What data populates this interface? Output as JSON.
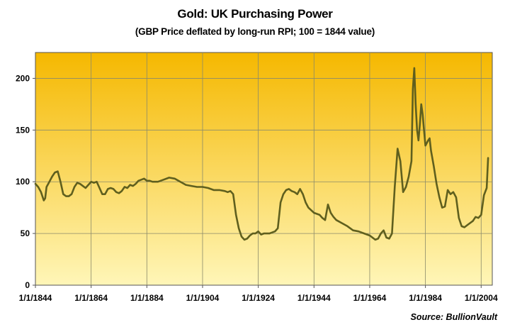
{
  "chart_data": {
    "type": "line",
    "title": "Gold: UK Purchasing Power",
    "subtitle": "(GBP Price deflated by long-run RPI; 100 = 1844 value)",
    "source": "Source: BullionVault",
    "xlabel": "",
    "ylabel": "",
    "xlim": [
      1844,
      2008
    ],
    "ylim": [
      0,
      225
    ],
    "y_ticks": [
      0,
      50,
      100,
      150,
      200
    ],
    "x_ticks": [
      1844,
      1864,
      1884,
      1904,
      1924,
      1944,
      1964,
      1984,
      2004
    ],
    "x_tick_labels": [
      "1/1/1844",
      "1/1/1864",
      "1/1/1884",
      "1/1/1904",
      "1/1/1924",
      "1/1/1944",
      "1/1/1964",
      "1/1/1984",
      "1/1/2004"
    ],
    "grid": true,
    "colors": {
      "line": "#5f5f1e",
      "plot_top": "#f5b800",
      "plot_bottom": "#fff6b8",
      "grid": "#8a8a6a",
      "axis": "#555555"
    },
    "series": [
      {
        "x": [
          1844,
          1845,
          1846,
          1847,
          1847.5,
          1848,
          1849,
          1850,
          1851,
          1852,
          1853,
          1854,
          1855,
          1856,
          1857,
          1858,
          1859,
          1860,
          1861,
          1862,
          1863,
          1864,
          1865,
          1866,
          1867,
          1868,
          1869,
          1870,
          1871,
          1872,
          1873,
          1874,
          1875,
          1876,
          1877,
          1878,
          1879,
          1880,
          1881,
          1882,
          1883,
          1884,
          1885,
          1886,
          1887,
          1888,
          1890,
          1892,
          1894,
          1896,
          1898,
          1900,
          1902,
          1904,
          1906,
          1908,
          1910,
          1912,
          1913,
          1914,
          1915,
          1916,
          1917,
          1918,
          1919,
          1920,
          1921,
          1922,
          1923,
          1924,
          1925,
          1926,
          1928,
          1930,
          1931,
          1932,
          1933,
          1934,
          1935,
          1936,
          1937,
          1938,
          1939,
          1940,
          1941,
          1942,
          1944,
          1946,
          1947,
          1948,
          1949,
          1950,
          1951,
          1952,
          1954,
          1956,
          1958,
          1960,
          1962,
          1964,
          1965,
          1966,
          1967,
          1968,
          1969,
          1970,
          1971,
          1972,
          1973,
          1974,
          1975,
          1976,
          1977,
          1978,
          1979,
          1979.5,
          1980,
          1980.5,
          1981,
          1981.5,
          1982,
          1982.5,
          1983,
          1983.5,
          1984,
          1985,
          1985.5,
          1986,
          1987,
          1988,
          1989,
          1990,
          1991,
          1992,
          1993,
          1994,
          1995,
          1996,
          1997,
          1998,
          1999,
          2000,
          2001,
          2002,
          2003,
          2004,
          2005,
          2006,
          2006.5
        ],
        "y": [
          98,
          95,
          90,
          82,
          84,
          95,
          100,
          105,
          109,
          110,
          100,
          88,
          86,
          86,
          88,
          95,
          99,
          98,
          96,
          94,
          97,
          100,
          99,
          100,
          94,
          88,
          88,
          93,
          94,
          93,
          90,
          89,
          91,
          95,
          94,
          97,
          96,
          98,
          101,
          102,
          103,
          101,
          101,
          100,
          100,
          100,
          102,
          104,
          103,
          100,
          97,
          96,
          95,
          95,
          94,
          92,
          92,
          91,
          90,
          91,
          88,
          68,
          55,
          47,
          44,
          45,
          48,
          50,
          50,
          52,
          49,
          50,
          50,
          52,
          55,
          80,
          88,
          92,
          93,
          91,
          90,
          88,
          93,
          88,
          80,
          75,
          70,
          68,
          65,
          63,
          78,
          70,
          66,
          63,
          60,
          57,
          53,
          52,
          50,
          48,
          46,
          44,
          45,
          50,
          53,
          46,
          45,
          50,
          95,
          132,
          120,
          90,
          95,
          105,
          120,
          190,
          210,
          175,
          150,
          140,
          155,
          175,
          165,
          150,
          135,
          140,
          142,
          130,
          115,
          98,
          85,
          75,
          76,
          92,
          88,
          90,
          85,
          65,
          57,
          56,
          58,
          60,
          62,
          66,
          65,
          68,
          87,
          94,
          123
        ]
      }
    ]
  }
}
